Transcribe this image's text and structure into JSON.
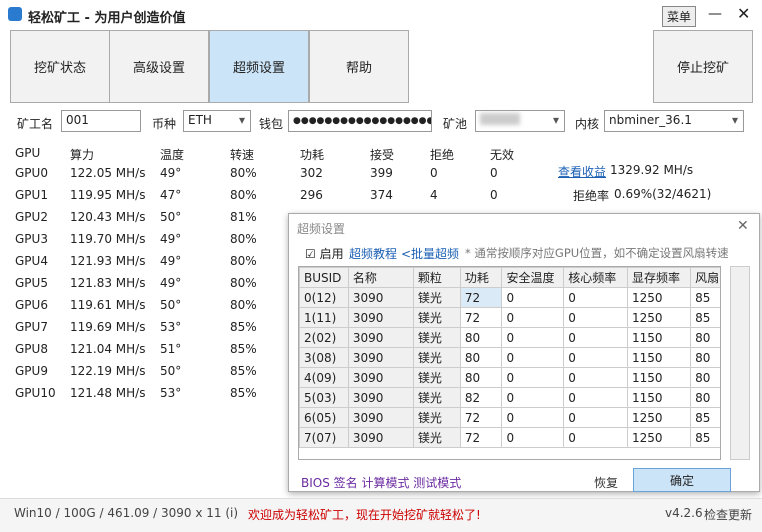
{
  "title_bar": {
    "title": "轻松矿工 - 为用户创造价值",
    "menu": "菜单"
  },
  "tabs": [
    "挖矿状态",
    "高级设置",
    "超频设置",
    "帮助"
  ],
  "stop_button": "停止挖矿",
  "form": {
    "miner_label": "矿工名",
    "miner_value": "001",
    "coin_label": "币种",
    "coin_value": "ETH",
    "wallet_label": "钱包",
    "wallet_value": "●●●●●●●●●●●●●●●●●●",
    "pool_label": "矿池",
    "kernel_label": "内核",
    "kernel_value": "nbminer_36.1"
  },
  "gpu_table": {
    "headers": [
      "GPU",
      "算力",
      "温度",
      "转速",
      "功耗",
      "接受",
      "拒绝",
      "无效"
    ],
    "rows": [
      [
        "GPU0",
        "122.05 MH/s",
        "49°",
        "80%",
        "302",
        "399",
        "0",
        "0"
      ],
      [
        "GPU1",
        "119.95 MH/s",
        "47°",
        "80%",
        "296",
        "374",
        "4",
        "0"
      ],
      [
        "GPU2",
        "120.43 MH/s",
        "50°",
        "81%"
      ],
      [
        "GPU3",
        "119.70 MH/s",
        "49°",
        "80%"
      ],
      [
        "GPU4",
        "121.93 MH/s",
        "49°",
        "80%"
      ],
      [
        "GPU5",
        "121.83 MH/s",
        "49°",
        "80%"
      ],
      [
        "GPU6",
        "119.61 MH/s",
        "50°",
        "80%"
      ],
      [
        "GPU7",
        "119.69 MH/s",
        "53°",
        "85%"
      ],
      [
        "GPU8",
        "121.04 MH/s",
        "51°",
        "85%"
      ],
      [
        "GPU9",
        "122.19 MH/s",
        "50°",
        "85%"
      ],
      [
        "GPU10",
        "121.48 MH/s",
        "53°",
        "85%"
      ]
    ]
  },
  "summary": {
    "earnings_link": "查看收益",
    "total_hashrate": "1329.92 MH/s",
    "reject_label": "拒绝率",
    "reject_value": "0.69%(32/4621)"
  },
  "dialog": {
    "title": "超频设置",
    "enable": "启用",
    "tutorial": "超频教程",
    "batch": "<批量超频",
    "note": "* 通常按顺序对应GPU位置，如不确定设置风扇转速",
    "headers": [
      "BUSID",
      "名称",
      "颗粒",
      "功耗",
      "安全温度",
      "核心频率",
      "显存频率",
      "风扇"
    ],
    "rows": [
      [
        "0(12)",
        "3090",
        "镁光",
        "72",
        "0",
        "0",
        "1250",
        "85"
      ],
      [
        "1(11)",
        "3090",
        "镁光",
        "72",
        "0",
        "0",
        "1250",
        "85"
      ],
      [
        "2(02)",
        "3090",
        "镁光",
        "80",
        "0",
        "0",
        "1150",
        "80"
      ],
      [
        "3(08)",
        "3090",
        "镁光",
        "80",
        "0",
        "0",
        "1150",
        "80"
      ],
      [
        "4(09)",
        "3090",
        "镁光",
        "80",
        "0",
        "0",
        "1150",
        "80"
      ],
      [
        "5(03)",
        "3090",
        "镁光",
        "82",
        "0",
        "0",
        "1150",
        "80"
      ],
      [
        "6(05)",
        "3090",
        "镁光",
        "72",
        "0",
        "0",
        "1250",
        "85"
      ],
      [
        "7(07)",
        "3090",
        "镁光",
        "72",
        "0",
        "0",
        "1250",
        "85"
      ]
    ],
    "footer_links": "BIOS 签名 计算模式 测试模式",
    "restore": "恢复",
    "confirm": "确定"
  },
  "status_bar": {
    "info": "Win10  / 100G / 461.09 / 3090 x 11 (i)",
    "welcome": "欢迎成为轻松矿工，现在开始挖矿就轻松了!",
    "version": "v4.2.6",
    "update": "检查更新"
  }
}
